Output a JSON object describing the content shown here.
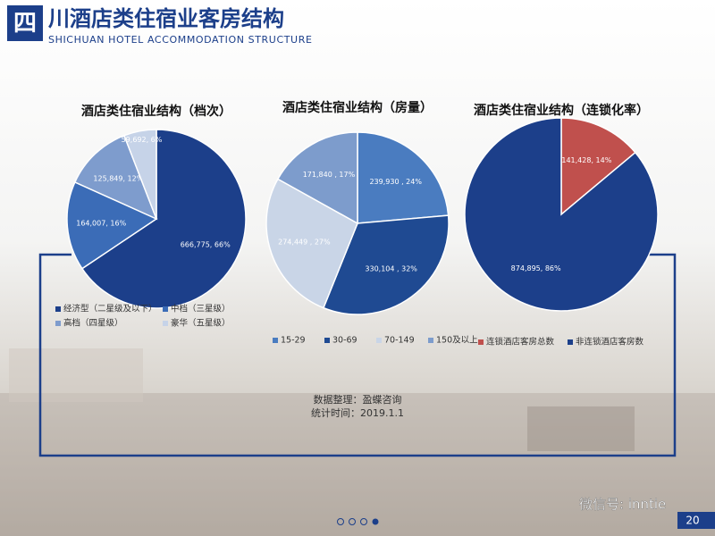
{
  "header": {
    "badge": "四",
    "title": "川酒店类住宿业客房结构",
    "subtitle": "SHICHUAN HOTEL ACCOMMODATION STRUCTURE"
  },
  "chart_data": [
    {
      "type": "pie",
      "title": "酒店类住宿业结构（档次）",
      "categories": [
        "经济型（二星级及以下）",
        "中档（三星级）",
        "高档（四星级）",
        "豪华（五星级）"
      ],
      "values": [
        666775,
        164007,
        125849,
        59692
      ],
      "value_labels": [
        "666,775, 66%",
        "164,007, 16%",
        "125,849, 12%",
        "59,692, 6%"
      ],
      "colors": [
        "#1c3f8a",
        "#3b6cb7",
        "#7e9ccd",
        "#c6d3e8"
      ],
      "legend": "bottom"
    },
    {
      "type": "pie",
      "title": "酒店类住宿业结构（房量）",
      "categories": [
        "15-29",
        "30-69",
        "70-149",
        "150及以上"
      ],
      "values": [
        239930,
        330104,
        274449,
        171840
      ],
      "value_labels": [
        "239,930 , 24%",
        "330,104 , 32%",
        "274,449 , 27%",
        "171,840 , 17%"
      ],
      "colors": [
        "#4a7cc0",
        "#1f4a92",
        "#c9d5e7",
        "#7d9ccc"
      ],
      "legend": "bottom"
    },
    {
      "type": "pie",
      "title": "酒店类住宿业结构（连锁化率）",
      "categories": [
        "连锁酒店客房总数",
        "非连锁酒店客房数"
      ],
      "values": [
        141428,
        874895
      ],
      "value_labels": [
        "141,428, 14%",
        "874,895, 86%"
      ],
      "colors": [
        "#c0504d",
        "#1c3f8a"
      ],
      "legend": "bottom"
    }
  ],
  "note": {
    "source": "数据整理：盈蝶咨询",
    "date": "统计时间：2019.1.1"
  },
  "footer": {
    "watermark": "微信号: inntie",
    "page": "20"
  }
}
